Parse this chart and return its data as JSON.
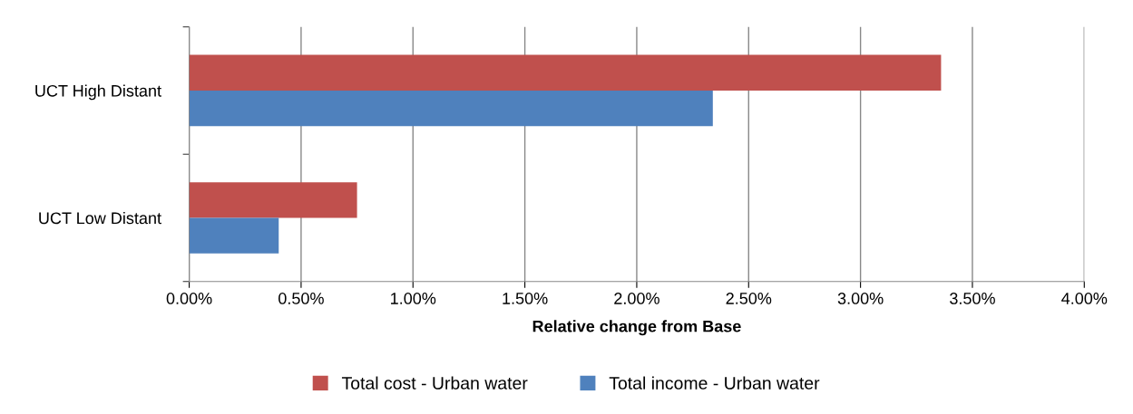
{
  "chart_data": {
    "type": "bar",
    "orientation": "horizontal",
    "xlabel": "Relative change from Base",
    "categories": [
      "UCT High Distant",
      "UCT Low Distant"
    ],
    "series": [
      {
        "name": "Total cost - Urban water",
        "color": "#c0504d",
        "values": [
          3.36,
          0.75
        ]
      },
      {
        "name": "Total income - Urban water",
        "color": "#4f81bd",
        "values": [
          2.34,
          0.4
        ]
      }
    ],
    "xlim": [
      0,
      4
    ],
    "xticks": [
      {
        "value": 0,
        "label": "0.00%"
      },
      {
        "value": 0.5,
        "label": "0.50%"
      },
      {
        "value": 1,
        "label": "1.00%"
      },
      {
        "value": 1.5,
        "label": "1.50%"
      },
      {
        "value": 2,
        "label": "2.00%"
      },
      {
        "value": 2.5,
        "label": "2.50%"
      },
      {
        "value": 3,
        "label": "3.00%"
      },
      {
        "value": 3.5,
        "label": "3.50%"
      },
      {
        "value": 4,
        "label": "4.00%"
      }
    ],
    "grid": "x",
    "legend": "bottom"
  }
}
